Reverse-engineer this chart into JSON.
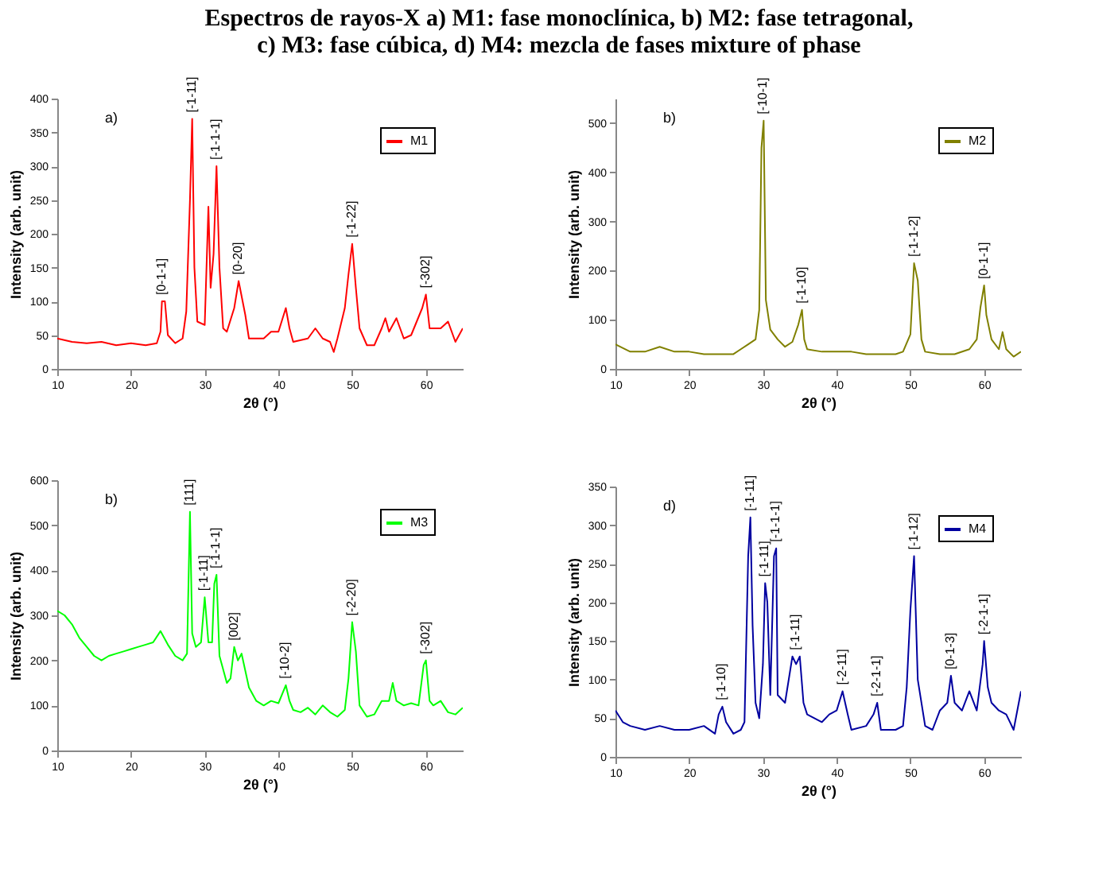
{
  "chart_data": [
    {
      "type": "line",
      "title": "Espectros de rayos-X a) M1: fase monoclínica, b) M2: fase tetragonal,\nc) M3: fase cúbica, d) M4: mezcla de fases mixture of phase",
      "xlabel": "2θ (°)",
      "ylabel": "Intensity (arb. unit)",
      "xlim": [
        10,
        65
      ],
      "xticks": [
        10,
        20,
        30,
        40,
        50,
        60
      ],
      "ylim": [
        0,
        400
      ],
      "yticks": [
        0,
        50,
        100,
        150,
        200,
        250,
        300,
        350,
        400
      ],
      "grid": false,
      "legend": "top right",
      "marker": "none",
      "annotations": [
        "a)",
        {
          "text": "[0-1-1]",
          "x": 24.2,
          "y": 100
        },
        {
          "text": "[-1-11]",
          "x": 28.3,
          "y": 370
        },
        {
          "text": "[-1-1-1]",
          "x": 31.6,
          "y": 300
        },
        {
          "text": "[0-20]",
          "x": 34.6,
          "y": 130
        },
        {
          "text": "[-1-22]",
          "x": 50,
          "y": 185
        },
        {
          "text": "[-302]",
          "x": 60,
          "y": 110
        }
      ],
      "x": [
        10,
        12,
        14,
        16,
        18,
        20,
        22,
        23.5,
        24,
        24.2,
        24.6,
        25,
        26,
        27,
        27.5,
        28,
        28.3,
        28.6,
        29,
        30,
        30.5,
        30.8,
        31.2,
        31.6,
        32,
        32.5,
        33,
        34,
        34.6,
        35.5,
        36,
        38,
        39,
        40,
        41,
        41.5,
        42,
        44,
        45,
        46,
        47,
        47.5,
        48,
        49,
        49.5,
        50,
        50.5,
        51,
        52,
        53,
        54,
        54.5,
        55,
        56,
        57,
        58,
        59.5,
        60,
        60.5,
        62,
        63,
        64,
        65
      ],
      "series": [
        {
          "name": "M1",
          "color": "#ff0000",
          "values": [
            45,
            40,
            38,
            40,
            35,
            38,
            35,
            38,
            55,
            100,
            100,
            50,
            38,
            45,
            85,
            250,
            370,
            150,
            70,
            65,
            240,
            120,
            170,
            300,
            150,
            60,
            55,
            90,
            130,
            80,
            45,
            45,
            55,
            55,
            90,
            60,
            40,
            45,
            60,
            45,
            40,
            25,
            45,
            90,
            140,
            185,
            120,
            60,
            35,
            35,
            60,
            75,
            55,
            75,
            45,
            50,
            90,
            110,
            60,
            60,
            70,
            40,
            60
          ]
        }
      ]
    },
    {
      "type": "line",
      "xlabel": "2θ (°)",
      "ylabel": "Intensity (arb. unit)",
      "xlim": [
        10,
        65
      ],
      "xticks": [
        10,
        20,
        30,
        40,
        50,
        60
      ],
      "ylim": [
        0,
        550
      ],
      "yticks": [
        0,
        100,
        200,
        300,
        400,
        500
      ],
      "grid": false,
      "legend": "top right",
      "marker": "none",
      "annotations": [
        "b)",
        {
          "text": "[-10-1]",
          "x": 30.1,
          "y": 505
        },
        {
          "text": "[-1-10]",
          "x": 35.3,
          "y": 120
        },
        {
          "text": "[-1-1-2]",
          "x": 50.5,
          "y": 215
        },
        {
          "text": "[0-1-1]",
          "x": 60,
          "y": 170
        }
      ],
      "x": [
        10,
        12,
        14,
        16,
        18,
        20,
        22,
        24,
        26,
        27,
        28,
        29,
        29.5,
        29.8,
        30.1,
        30.4,
        31,
        32,
        33,
        34,
        34.8,
        35.3,
        35.6,
        36,
        38,
        40,
        42,
        44,
        46,
        48,
        49,
        50,
        50.5,
        51,
        51.5,
        52,
        54,
        56,
        58,
        59,
        59.5,
        60,
        60.3,
        61,
        62,
        62.5,
        63,
        64,
        65
      ],
      "series": [
        {
          "name": "M2",
          "color": "#808000",
          "values": [
            50,
            35,
            35,
            45,
            35,
            35,
            30,
            30,
            30,
            40,
            50,
            60,
            120,
            450,
            505,
            140,
            80,
            60,
            45,
            55,
            90,
            120,
            60,
            40,
            35,
            35,
            35,
            30,
            30,
            30,
            35,
            70,
            215,
            180,
            60,
            35,
            30,
            30,
            40,
            60,
            125,
            170,
            110,
            60,
            40,
            75,
            40,
            25,
            35
          ]
        }
      ]
    },
    {
      "type": "line",
      "xlabel": "2θ (°)",
      "ylabel": "Intensity (arb. unit)",
      "xlim": [
        10,
        65
      ],
      "xticks": [
        10,
        20,
        30,
        40,
        50,
        60
      ],
      "ylim": [
        0,
        600
      ],
      "yticks": [
        0,
        100,
        200,
        300,
        400,
        500,
        600
      ],
      "grid": false,
      "legend": "top right",
      "marker": "none",
      "annotations": [
        "b)",
        {
          "text": "[111]",
          "x": 28,
          "y": 530
        },
        {
          "text": "[-1-11]",
          "x": 30,
          "y": 340
        },
        {
          "text": "[-1-1-1]",
          "x": 31.6,
          "y": 390
        },
        {
          "text": "[002]",
          "x": 34,
          "y": 230
        },
        {
          "text": "[-10-2]",
          "x": 41,
          "y": 145
        },
        {
          "text": "[-2-20]",
          "x": 50,
          "y": 285
        },
        {
          "text": "[-302]",
          "x": 60,
          "y": 200
        }
      ],
      "x": [
        10,
        11,
        12,
        13,
        14,
        15,
        16,
        17,
        18,
        19,
        20,
        21,
        22,
        23,
        24,
        25,
        26,
        27,
        27.6,
        28,
        28.3,
        28.8,
        29.5,
        30,
        30.5,
        31,
        31.3,
        31.6,
        32,
        33,
        33.5,
        34,
        34.5,
        35,
        36,
        37,
        38,
        39,
        40,
        41,
        41.5,
        42,
        43,
        44,
        45,
        46,
        47,
        48,
        49,
        49.5,
        50,
        50.5,
        51,
        52,
        53,
        54,
        55,
        55.5,
        56,
        57,
        58,
        59,
        59.7,
        60,
        60.5,
        61,
        62,
        63,
        64,
        65
      ],
      "series": [
        {
          "name": "M3",
          "color": "#00ff00",
          "values": [
            310,
            300,
            280,
            250,
            230,
            210,
            200,
            210,
            215,
            220,
            225,
            230,
            235,
            240,
            265,
            235,
            210,
            200,
            215,
            530,
            260,
            230,
            240,
            340,
            240,
            240,
            370,
            390,
            210,
            150,
            160,
            230,
            200,
            215,
            140,
            110,
            100,
            110,
            105,
            145,
            110,
            90,
            85,
            95,
            80,
            100,
            85,
            75,
            90,
            160,
            285,
            220,
            100,
            75,
            80,
            110,
            110,
            150,
            110,
            100,
            105,
            100,
            190,
            200,
            110,
            100,
            110,
            85,
            80,
            95
          ]
        }
      ]
    },
    {
      "type": "line",
      "xlabel": "2θ (°)",
      "ylabel": "Intensity (arb. unit)",
      "xlim": [
        10,
        65
      ],
      "xticks": [
        10,
        20,
        30,
        40,
        50,
        60
      ],
      "ylim": [
        0,
        350
      ],
      "yticks": [
        0,
        50,
        100,
        150,
        200,
        250,
        300,
        350
      ],
      "grid": false,
      "legend": "top right",
      "marker": "none",
      "annotations": [
        "d)",
        {
          "text": "[-1-10]",
          "x": 24.5,
          "y": 65
        },
        {
          "text": "[-1-11]",
          "x": 28.3,
          "y": 310
        },
        {
          "text": "[-1-11]",
          "x": 30.3,
          "y": 225
        },
        {
          "text": "[-1-1-1]",
          "x": 31.8,
          "y": 270
        },
        {
          "text": "[-1-11]",
          "x": 34.5,
          "y": 130
        },
        {
          "text": "[-2-11]",
          "x": 40.8,
          "y": 85
        },
        {
          "text": "[-2-1-1]",
          "x": 45.5,
          "y": 70
        },
        {
          "text": "[-1-12]",
          "x": 50.5,
          "y": 260
        },
        {
          "text": "[0-1-3]",
          "x": 55.5,
          "y": 105
        },
        {
          "text": "[-2-1-1]",
          "x": 60,
          "y": 150
        }
      ],
      "x": [
        10,
        11,
        12,
        14,
        16,
        18,
        20,
        22,
        23.5,
        24,
        24.5,
        25,
        26,
        27,
        27.5,
        28,
        28.3,
        28.6,
        29,
        29.5,
        30,
        30.3,
        30.6,
        31,
        31.5,
        31.8,
        32,
        33,
        34,
        34.5,
        35,
        35.5,
        36,
        38,
        39,
        40,
        40.8,
        41.5,
        42,
        44,
        45,
        45.5,
        46,
        48,
        49,
        49.5,
        50,
        50.5,
        51,
        52,
        53,
        54,
        55,
        55.5,
        56,
        57,
        58,
        59,
        59.8,
        60,
        60.5,
        61,
        62,
        63,
        64,
        65
      ],
      "series": [
        {
          "name": "M4",
          "color": "#0000a0",
          "values": [
            60,
            45,
            40,
            35,
            40,
            35,
            35,
            40,
            30,
            55,
            65,
            45,
            30,
            35,
            45,
            260,
            310,
            170,
            70,
            50,
            120,
            225,
            200,
            80,
            260,
            270,
            80,
            70,
            130,
            120,
            130,
            70,
            55,
            45,
            55,
            60,
            85,
            55,
            35,
            40,
            55,
            70,
            35,
            35,
            40,
            90,
            190,
            260,
            100,
            40,
            35,
            60,
            70,
            105,
            70,
            60,
            85,
            60,
            120,
            150,
            90,
            70,
            60,
            55,
            35,
            85
          ]
        }
      ]
    }
  ]
}
